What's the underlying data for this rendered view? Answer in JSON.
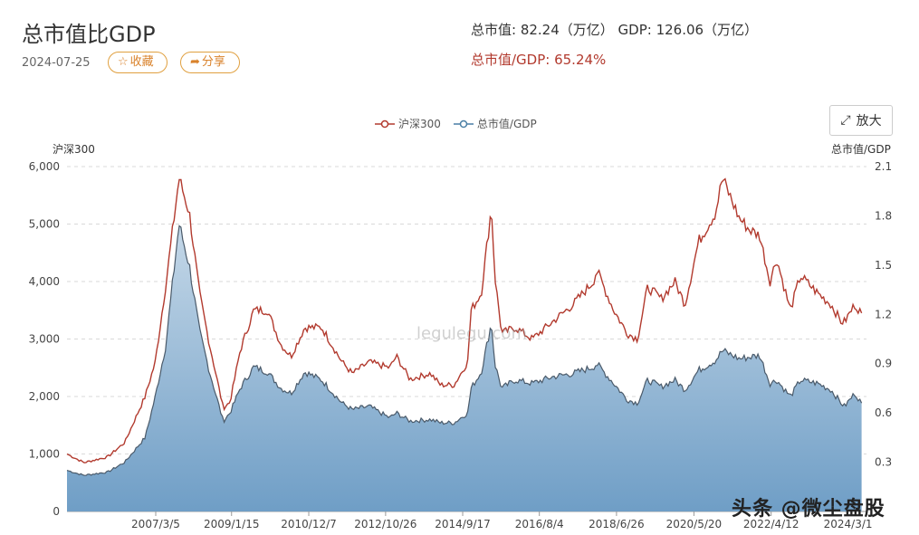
{
  "header": {
    "title": "总市值比GDP",
    "date": "2024-07-25",
    "fav_label": "收藏",
    "share_label": "分享",
    "stat_line1": "总市值: 82.24（万亿） GDP: 126.06（万亿）",
    "stat_line2": "总市值/GDP: 65.24%"
  },
  "toolbar": {
    "zoom_label": "放大"
  },
  "watermark": "legulegu.com",
  "brand": "头条 @微尘盘股",
  "colors": {
    "csi": "#b23a2e",
    "ratio_line": "#4a5a6a",
    "ratio_fill_top": "#a9c3da",
    "ratio_fill_bottom": "#6f9ec6"
  },
  "chart_data": {
    "type": "line",
    "legend": [
      "沪深300",
      "总市值/GDP"
    ],
    "legend_position": "top",
    "y_left": {
      "label": "沪深300",
      "range": [
        0,
        6000
      ],
      "ticks": [
        "6,000",
        "5,000",
        "4,000",
        "3,000",
        "2,000",
        "1,000",
        "0"
      ]
    },
    "y_right": {
      "label": "总市值/GDP",
      "range": [
        0,
        2.1
      ],
      "ticks": [
        "2.1",
        "1.8",
        "1.5",
        "1.2",
        "0.9",
        "0.6",
        "0.3"
      ]
    },
    "x_ticks": [
      "2007/3/5",
      "2009/1/15",
      "2010/12/7",
      "2012/10/26",
      "2014/9/17",
      "2016/8/4",
      "2018/6/26",
      "2020/5/20",
      "2022/4/12",
      "2024/3/1"
    ],
    "grid": true,
    "series": [
      {
        "name": "沪深300",
        "axis": "left",
        "x": [
          "2005-01",
          "2005-06",
          "2006-01",
          "2006-06",
          "2006-12",
          "2007-03",
          "2007-06",
          "2007-10",
          "2008-01",
          "2008-04",
          "2008-07",
          "2008-11",
          "2009-01",
          "2009-04",
          "2009-08",
          "2009-12",
          "2010-04",
          "2010-07",
          "2010-11",
          "2011-04",
          "2011-10",
          "2012-01",
          "2012-06",
          "2012-12",
          "2013-02",
          "2013-06",
          "2013-12",
          "2014-03",
          "2014-07",
          "2014-11",
          "2014-12",
          "2015-03",
          "2015-06",
          "2015-07",
          "2015-09",
          "2016-01",
          "2016-06",
          "2016-12",
          "2017-06",
          "2017-12",
          "2018-01",
          "2018-06",
          "2018-10",
          "2019-01",
          "2019-04",
          "2019-08",
          "2019-12",
          "2020-03",
          "2020-07",
          "2020-12",
          "2021-02",
          "2021-07",
          "2021-10",
          "2022-01",
          "2022-04",
          "2022-06",
          "2022-10",
          "2023-01",
          "2023-06",
          "2023-10",
          "2024-01",
          "2024-02",
          "2024-05",
          "2024-07"
        ],
        "values": [
          1000,
          850,
          950,
          1200,
          2000,
          2600,
          3900,
          5800,
          5200,
          3800,
          2900,
          1800,
          1900,
          2800,
          3500,
          3500,
          2900,
          2700,
          3200,
          3200,
          2600,
          2400,
          2600,
          2500,
          2700,
          2300,
          2400,
          2200,
          2200,
          2600,
          3500,
          3800,
          5300,
          4100,
          3100,
          3200,
          3000,
          3300,
          3600,
          4000,
          4200,
          3500,
          3100,
          3000,
          3900,
          3700,
          4000,
          3600,
          4700,
          5200,
          5800,
          5100,
          4900,
          4800,
          4000,
          4400,
          3500,
          4100,
          3800,
          3600,
          3300,
          3300,
          3600,
          3450
        ]
      },
      {
        "name": "总市值/GDP",
        "axis": "right",
        "x": [
          "2005-01",
          "2005-06",
          "2006-01",
          "2006-06",
          "2006-12",
          "2007-03",
          "2007-06",
          "2007-10",
          "2008-01",
          "2008-04",
          "2008-07",
          "2008-11",
          "2009-01",
          "2009-04",
          "2009-08",
          "2009-12",
          "2010-04",
          "2010-07",
          "2010-11",
          "2011-04",
          "2011-10",
          "2012-01",
          "2012-06",
          "2012-12",
          "2013-02",
          "2013-06",
          "2013-12",
          "2014-03",
          "2014-07",
          "2014-11",
          "2014-12",
          "2015-03",
          "2015-06",
          "2015-07",
          "2015-09",
          "2016-01",
          "2016-06",
          "2016-12",
          "2017-06",
          "2017-12",
          "2018-01",
          "2018-06",
          "2018-10",
          "2019-01",
          "2019-04",
          "2019-08",
          "2019-12",
          "2020-03",
          "2020-07",
          "2020-12",
          "2021-02",
          "2021-07",
          "2021-10",
          "2022-01",
          "2022-04",
          "2022-06",
          "2022-10",
          "2023-01",
          "2023-06",
          "2023-10",
          "2024-01",
          "2024-02",
          "2024-05",
          "2024-07"
        ],
        "values": [
          0.25,
          0.22,
          0.24,
          0.3,
          0.45,
          0.7,
          1.0,
          1.75,
          1.5,
          1.1,
          0.85,
          0.55,
          0.6,
          0.75,
          0.88,
          0.85,
          0.75,
          0.72,
          0.85,
          0.8,
          0.66,
          0.62,
          0.64,
          0.57,
          0.6,
          0.55,
          0.56,
          0.54,
          0.54,
          0.6,
          0.75,
          0.85,
          1.15,
          0.9,
          0.75,
          0.8,
          0.78,
          0.82,
          0.84,
          0.88,
          0.9,
          0.78,
          0.68,
          0.66,
          0.8,
          0.76,
          0.8,
          0.74,
          0.86,
          0.92,
          0.98,
          0.93,
          0.94,
          0.95,
          0.78,
          0.8,
          0.7,
          0.8,
          0.78,
          0.74,
          0.66,
          0.64,
          0.72,
          0.66
        ]
      }
    ]
  }
}
